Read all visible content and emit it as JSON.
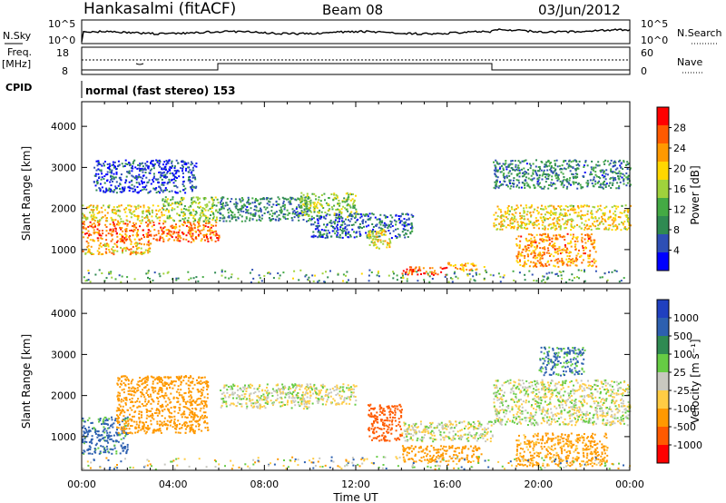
{
  "header": {
    "station": "Hankasalmi (fitACF)",
    "beam": "Beam 08",
    "date": "03/Jun/2012"
  },
  "noise_panel": {
    "left_label": "N.Sky",
    "right_label": "N.Search",
    "ticks": [
      "10^5",
      "10^0"
    ]
  },
  "freq_panel": {
    "left_label_1": "Freq.",
    "left_label_2": "[MHz]",
    "left_ticks": [
      "18",
      "8"
    ],
    "right_label": "Nave",
    "right_ticks": [
      "60",
      "0"
    ]
  },
  "cpid_panel": {
    "label": "CPID",
    "text": "normal (fast stereo) 153"
  },
  "colors": {
    "power_scale": [
      "#0000ff",
      "#2e4fb5",
      "#2f8a52",
      "#44aa44",
      "#a0d23c",
      "#ffd700",
      "#ff9900",
      "#ff5a00",
      "#ff0000"
    ],
    "velocity_scale": [
      "#2040c0",
      "#2d60b0",
      "#2f8a52",
      "#66cc44",
      "#c8c8c0",
      "#ffcc44",
      "#ff9900",
      "#ff5a00",
      "#ff0000"
    ],
    "ground_scatter": "#c8c8c0"
  },
  "chart_data": [
    {
      "type": "heatmap",
      "name": "Power",
      "xlabel": "",
      "ylabel": "Slant Range [km]",
      "x_ticks": [
        "00:00",
        "04:00",
        "08:00",
        "12:00",
        "16:00",
        "20:00",
        "00:00"
      ],
      "y_ticks": [
        "1000",
        "2000",
        "3000",
        "4000"
      ],
      "xlim_hours": [
        0,
        24
      ],
      "ylim_km": [
        180,
        4600
      ],
      "colorbar": {
        "label": "Power [dB]",
        "ticks": [
          "28",
          "24",
          "20",
          "16",
          "12",
          "8",
          "4"
        ],
        "range": [
          0,
          30
        ]
      },
      "regions": [
        {
          "t": [
            0.0,
            6.0
          ],
          "r": [
            1200,
            1700
          ],
          "level": 24
        },
        {
          "t": [
            0.0,
            3.5
          ],
          "r": [
            1700,
            2100
          ],
          "level": 18
        },
        {
          "t": [
            3.5,
            6.0
          ],
          "r": [
            1700,
            2300
          ],
          "level": 14
        },
        {
          "t": [
            0.0,
            3.0
          ],
          "r": [
            900,
            1200
          ],
          "level": 20
        },
        {
          "t": [
            0.5,
            5.0
          ],
          "r": [
            2400,
            3200
          ],
          "level": 4
        },
        {
          "t": [
            6.0,
            10.0
          ],
          "r": [
            1700,
            2300
          ],
          "level": 8
        },
        {
          "t": [
            9.5,
            12.0
          ],
          "r": [
            1800,
            2400
          ],
          "level": 14
        },
        {
          "t": [
            10.0,
            14.5
          ],
          "r": [
            1300,
            1900
          ],
          "level": 6
        },
        {
          "t": [
            12.5,
            13.5
          ],
          "r": [
            1000,
            1500
          ],
          "level": 18
        },
        {
          "t": [
            14.0,
            16.0
          ],
          "r": [
            400,
            600
          ],
          "level": 26
        },
        {
          "t": [
            16.0,
            17.6
          ],
          "r": [
            500,
            700
          ],
          "level": 22
        },
        {
          "t": [
            18.0,
            24.0
          ],
          "r": [
            1500,
            2100
          ],
          "level": 18
        },
        {
          "t": [
            18.0,
            24.0
          ],
          "r": [
            2500,
            3200
          ],
          "level": 8
        },
        {
          "t": [
            19.0,
            22.5
          ],
          "r": [
            600,
            1400
          ],
          "level": 22
        }
      ]
    },
    {
      "type": "heatmap",
      "name": "Velocity",
      "xlabel": "Time UT",
      "ylabel": "Slant Range [km]",
      "x_ticks": [
        "00:00",
        "04:00",
        "08:00",
        "12:00",
        "16:00",
        "20:00",
        "00:00"
      ],
      "y_ticks": [
        "1000",
        "2000",
        "3000",
        "4000"
      ],
      "xlim_hours": [
        0,
        24
      ],
      "ylim_km": [
        180,
        4600
      ],
      "colorbar": {
        "label": "Velocity [m s⁻¹]",
        "ticks": [
          "1000",
          "500",
          "100",
          "25",
          "-25",
          "-100",
          "-500",
          "-1000"
        ],
        "range": [
          -1000,
          1000
        ]
      },
      "regions": [
        {
          "t": [
            0.0,
            2.0
          ],
          "r": [
            600,
            1500
          ],
          "velocity": 150
        },
        {
          "t": [
            1.5,
            5.5
          ],
          "r": [
            1100,
            2500
          ],
          "velocity": -200
        },
        {
          "t": [
            6.0,
            10.0
          ],
          "r": [
            1700,
            2300
          ],
          "velocity": 0
        },
        {
          "t": [
            9.5,
            12.0
          ],
          "r": [
            1800,
            2300
          ],
          "velocity": -20
        },
        {
          "t": [
            12.5,
            14.0
          ],
          "r": [
            900,
            1800
          ],
          "velocity": -700
        },
        {
          "t": [
            14.0,
            17.5
          ],
          "r": [
            400,
            800
          ],
          "velocity": -300
        },
        {
          "t": [
            14.0,
            18.0
          ],
          "r": [
            900,
            1400
          ],
          "velocity": 0
        },
        {
          "t": [
            18.0,
            24.0
          ],
          "r": [
            1300,
            2400
          ],
          "velocity": 0
        },
        {
          "t": [
            19.0,
            23.0
          ],
          "r": [
            300,
            1100
          ],
          "velocity": -150
        },
        {
          "t": [
            20.0,
            22.0
          ],
          "r": [
            2500,
            3200
          ],
          "velocity": 120
        }
      ]
    }
  ]
}
